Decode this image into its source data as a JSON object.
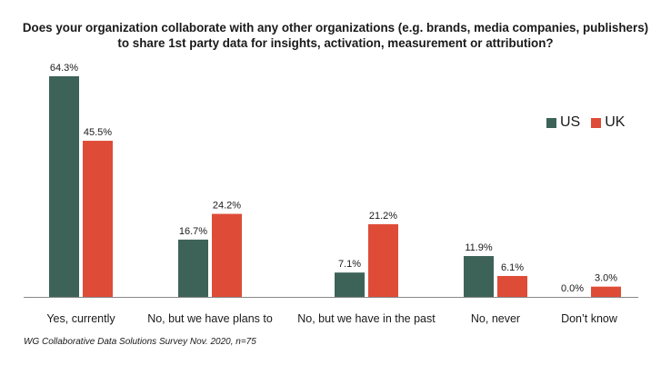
{
  "title": {
    "line1": "Does your organization collaborate with any other organizations (e.g. brands, media companies, publishers)",
    "line2": "to share 1st party data for insights, activation, measurement or attribution?"
  },
  "source": "WG Collaborative Data Solutions Survey Nov. 2020, n=75",
  "colors": {
    "US": "#3d6358",
    "UK": "#de4c38",
    "axis": "#888888"
  },
  "chart_data": {
    "type": "bar",
    "categories": [
      "Yes, currently",
      "No, but we have plans to",
      "No, but we have in the past",
      "No, never",
      "Don’t know"
    ],
    "series": [
      {
        "name": "US",
        "values": [
          64.3,
          16.7,
          7.1,
          11.9,
          0.0
        ],
        "labels": [
          "64.3%",
          "16.7%",
          "7.1%",
          "11.9%",
          "0.0%"
        ]
      },
      {
        "name": "UK",
        "values": [
          45.5,
          24.2,
          21.2,
          6.1,
          3.0
        ],
        "labels": [
          "45.5%",
          "24.2%",
          "21.2%",
          "6.1%",
          "3.0%"
        ]
      }
    ],
    "legend_position": "right",
    "grid": false
  }
}
